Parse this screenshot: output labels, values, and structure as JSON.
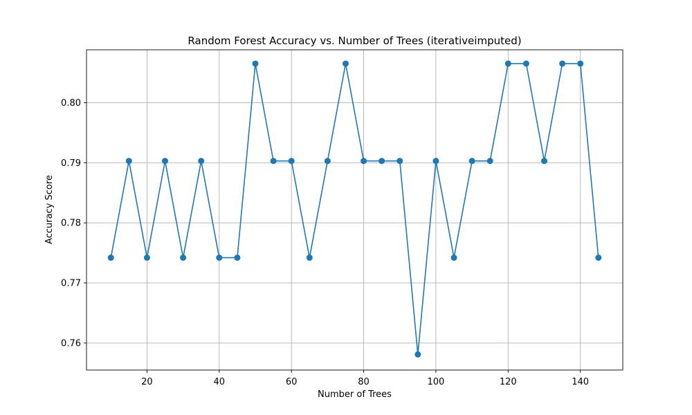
{
  "chart_data": {
    "type": "line",
    "title": "Random Forest Accuracy vs. Number of Trees (iterativeimputed)",
    "xlabel": "Number of Trees",
    "ylabel": "Accuracy Score",
    "xlim": [
      3.25,
      151.75
    ],
    "ylim": [
      0.7555,
      0.8088
    ],
    "xticks": [
      20,
      40,
      60,
      80,
      100,
      120,
      140
    ],
    "xtick_labels": [
      "20",
      "40",
      "60",
      "80",
      "100",
      "120",
      "140"
    ],
    "yticks": [
      0.76,
      0.77,
      0.78,
      0.79,
      0.8
    ],
    "ytick_labels": [
      "0.76",
      "0.77",
      "0.78",
      "0.79",
      "0.80"
    ],
    "grid": true,
    "series": [
      {
        "name": "Accuracy",
        "color": "#1f77b4",
        "marker": "circle",
        "x": [
          10,
          15,
          20,
          25,
          30,
          35,
          40,
          45,
          50,
          55,
          60,
          65,
          70,
          75,
          80,
          85,
          90,
          95,
          100,
          105,
          110,
          115,
          120,
          125,
          130,
          135,
          140,
          145
        ],
        "values": [
          0.7742,
          0.7903,
          0.7742,
          0.7903,
          0.7742,
          0.7903,
          0.7742,
          0.7742,
          0.8065,
          0.7903,
          0.7903,
          0.7742,
          0.7903,
          0.8065,
          0.7903,
          0.7903,
          0.7903,
          0.7581,
          0.7903,
          0.7742,
          0.7903,
          0.7903,
          0.8065,
          0.8065,
          0.7903,
          0.8065,
          0.8065,
          0.7742
        ]
      }
    ]
  }
}
